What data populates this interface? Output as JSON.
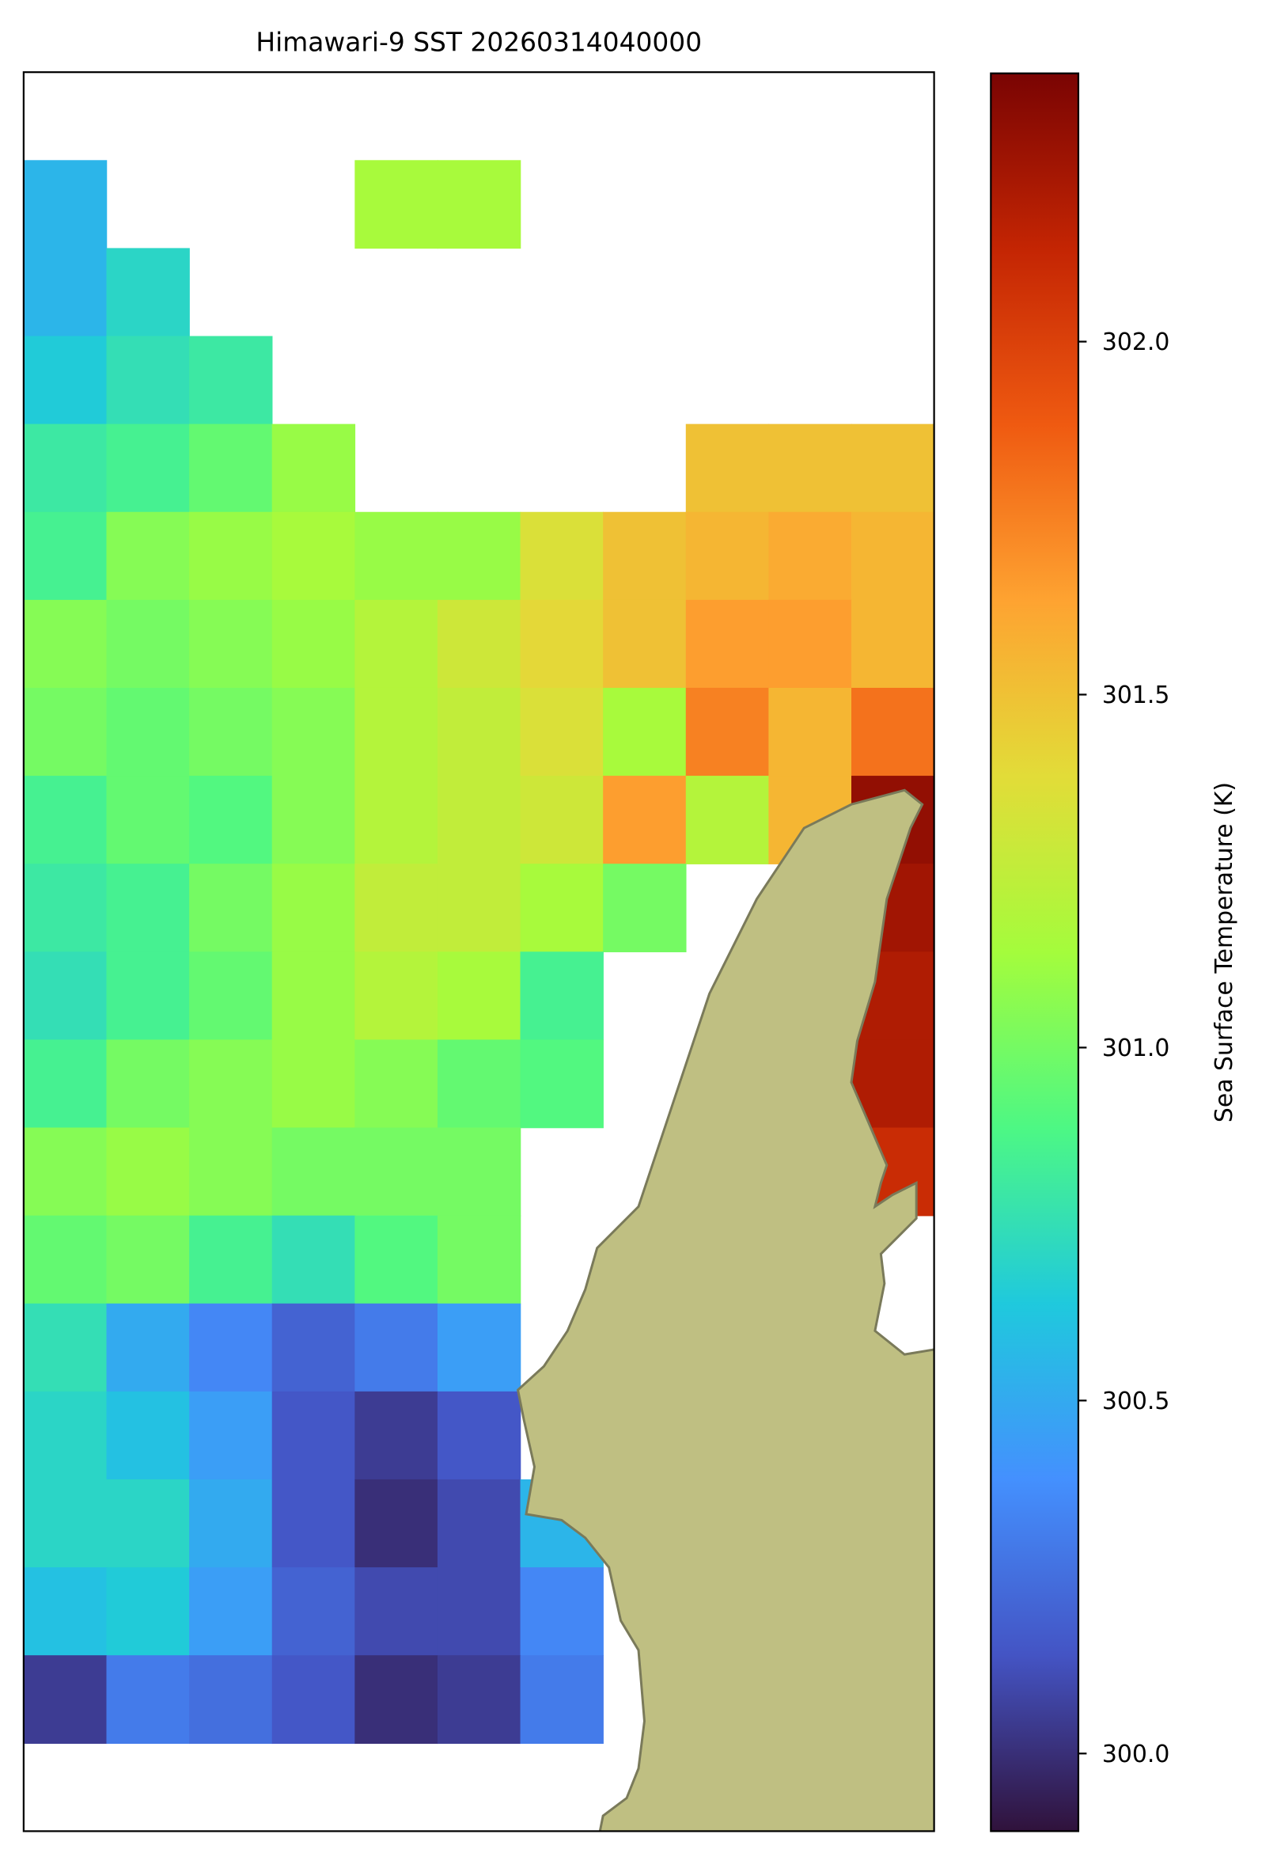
{
  "chart_data": {
    "type": "heatmap",
    "title": "Himawari-9 SST 20260314040000",
    "colormap": "turbo",
    "colorbar_label": "Sea Surface Temperature (K)",
    "clim": [
      299.89,
      302.38
    ],
    "cticks": [
      {
        "value": 300,
        "label": "300.0"
      },
      {
        "value": 300.5,
        "label": "300.5"
      },
      {
        "value": 301,
        "label": "301.0"
      },
      {
        "value": 301.5,
        "label": "301.5"
      },
      {
        "value": 302,
        "label": "302.0"
      }
    ],
    "z": [
      [
        null,
        null,
        null,
        null,
        null,
        null,
        null,
        null,
        null,
        null,
        null
      ],
      [
        300.55,
        null,
        null,
        null,
        301.15,
        301.15,
        null,
        null,
        null,
        null,
        null
      ],
      [
        300.55,
        300.7,
        null,
        null,
        null,
        null,
        null,
        null,
        null,
        null,
        null
      ],
      [
        300.65,
        300.75,
        300.8,
        null,
        null,
        null,
        null,
        null,
        null,
        null,
        null
      ],
      [
        300.8,
        300.85,
        300.95,
        301.1,
        null,
        null,
        null,
        null,
        301.5,
        301.5,
        301.5
      ],
      [
        300.85,
        301.05,
        301.1,
        301.15,
        301.1,
        301.1,
        301.35,
        301.5,
        301.55,
        301.6,
        301.55
      ],
      [
        301.05,
        301.0,
        301.05,
        301.1,
        301.2,
        301.3,
        301.4,
        301.5,
        301.65,
        301.65,
        301.55
      ],
      [
        301.0,
        300.95,
        301.0,
        301.05,
        301.2,
        301.25,
        301.35,
        301.15,
        301.75,
        301.55,
        301.8
      ],
      [
        300.85,
        300.95,
        300.9,
        301.05,
        301.2,
        301.25,
        301.3,
        301.65,
        301.2,
        301.55,
        302.3
      ],
      [
        300.8,
        300.85,
        301.0,
        301.1,
        301.25,
        301.25,
        301.15,
        301.0,
        null,
        null,
        302.25
      ],
      [
        300.75,
        300.85,
        300.95,
        301.1,
        301.2,
        301.15,
        300.85,
        null,
        null,
        null,
        302.2
      ],
      [
        300.85,
        301.0,
        301.05,
        301.1,
        301.05,
        300.95,
        300.9,
        null,
        null,
        null,
        302.2
      ],
      [
        301.05,
        301.1,
        301.05,
        301.0,
        301.0,
        301.0,
        null,
        null,
        null,
        null,
        302.1
      ],
      [
        300.95,
        301.0,
        300.85,
        300.75,
        300.9,
        301.0,
        null,
        null,
        null,
        null,
        null
      ],
      [
        300.75,
        300.5,
        300.35,
        300.2,
        300.3,
        300.45,
        null,
        null,
        null,
        null,
        null
      ],
      [
        300.7,
        300.6,
        300.45,
        300.15,
        300.05,
        300.15,
        null,
        null,
        null,
        null,
        null
      ],
      [
        300.7,
        300.7,
        300.5,
        300.15,
        300.0,
        300.1,
        300.55,
        null,
        null,
        null,
        null
      ],
      [
        300.6,
        300.65,
        300.45,
        300.2,
        300.1,
        300.1,
        300.35,
        null,
        null,
        null,
        null
      ],
      [
        300.05,
        300.3,
        300.25,
        300.15,
        300.0,
        300.05,
        300.3,
        null,
        null,
        null,
        null
      ],
      [
        null,
        null,
        null,
        null,
        null,
        null,
        null,
        null,
        null,
        null,
        null
      ]
    ]
  }
}
